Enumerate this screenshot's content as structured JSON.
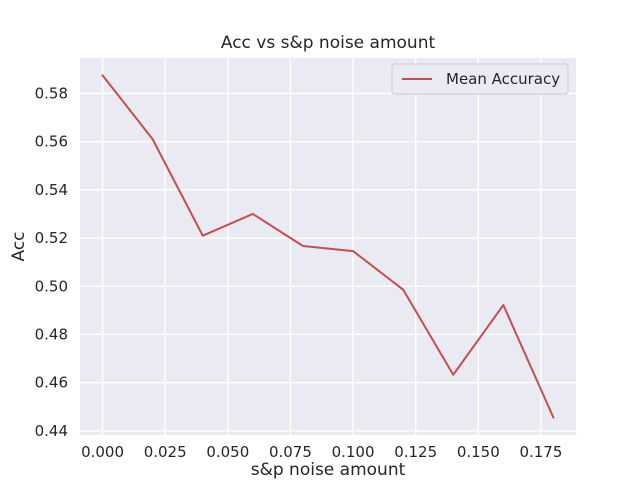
{
  "chart_data": {
    "type": "line",
    "title": "Acc vs s&p noise amount",
    "xlabel": "s&p noise amount",
    "ylabel": "Acc",
    "x": [
      0.0,
      0.02,
      0.04,
      0.06,
      0.08,
      0.1,
      0.12,
      0.14,
      0.16,
      0.18
    ],
    "series": [
      {
        "name": "Mean Accuracy",
        "color": "#c44e52",
        "values": [
          0.5875,
          0.561,
          0.521,
          0.53,
          0.5167,
          0.5146,
          0.4986,
          0.4633,
          0.4922,
          0.4455
        ]
      }
    ],
    "xlim": [
      -0.009,
      0.189
    ],
    "ylim": [
      0.4383,
      0.5947
    ],
    "xticks": [
      0.0,
      0.025,
      0.05,
      0.075,
      0.1,
      0.125,
      0.15,
      0.175
    ],
    "xtick_labels": [
      "0.000",
      "0.025",
      "0.050",
      "0.075",
      "0.100",
      "0.125",
      "0.150",
      "0.175"
    ],
    "yticks": [
      0.44,
      0.46,
      0.48,
      0.5,
      0.52,
      0.54,
      0.56,
      0.58
    ],
    "ytick_labels": [
      "0.44",
      "0.46",
      "0.48",
      "0.50",
      "0.52",
      "0.54",
      "0.56",
      "0.58"
    ],
    "grid": true,
    "legend": "top-right",
    "background_color": "#eaeaf2",
    "grid_color": "#ffffff"
  }
}
